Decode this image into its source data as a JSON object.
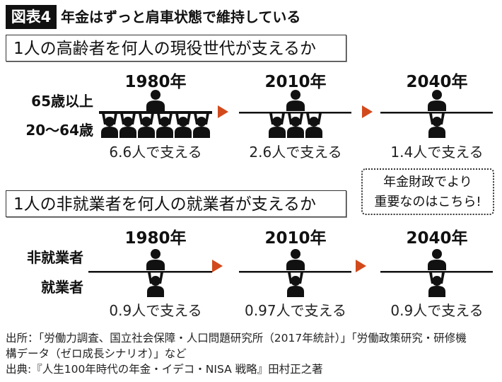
{
  "header": {
    "badge": "図表4",
    "title": "年金はずっと肩車状態で維持している"
  },
  "section1": {
    "question": "1人の高齢者を何人の現役世代が支えるか",
    "label_top": "65歳以上",
    "label_bottom": "20〜64歳",
    "groups": [
      {
        "year": "1980年",
        "caption": "6.6人で支える",
        "supporters": 6
      },
      {
        "year": "2010年",
        "caption": "2.6人で支える",
        "supporters": 3
      },
      {
        "year": "2040年",
        "caption": "1.4人で支える",
        "supporters": 1
      }
    ]
  },
  "section2": {
    "question": "1人の非就業者を何人の就業者が支えるか",
    "label_top": "非就業者",
    "label_bottom": "就業者",
    "groups": [
      {
        "year": "1980年",
        "caption": "0.9人で支える",
        "supporters": 1
      },
      {
        "year": "2010年",
        "caption": "0.97人で支える",
        "supporters": 1
      },
      {
        "year": "2040年",
        "caption": "0.9人で支える",
        "supporters": 1
      }
    ]
  },
  "callout": {
    "line1": "年金財政でより",
    "line2": "重要なのはこちら!"
  },
  "footer": {
    "line1": "出所：「労働力調査、国立社会保障・人口問題研究所（2017年統計）」「労働政策研究・研修機",
    "line2": "構データ（ゼロ成長シナリオ）」など",
    "line3": "出典:『人生100年時代の年金・イデコ・NISA 戦略』田村正之著"
  },
  "colors": {
    "arrow": "#d24a1c",
    "figure": "#111111"
  }
}
